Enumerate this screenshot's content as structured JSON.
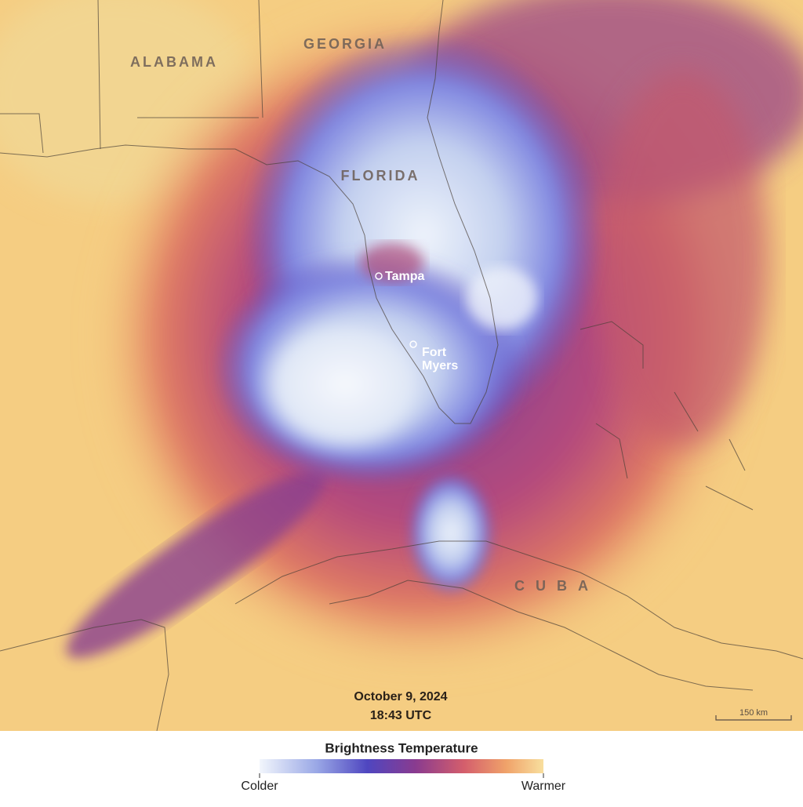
{
  "map": {
    "regions": [
      "ALABAMA",
      "GEORGIA",
      "FLORIDA",
      "CUBA"
    ],
    "cities": [
      {
        "name": [
          "Tampa"
        ]
      },
      {
        "name": [
          "Fort",
          "Myers"
        ]
      }
    ],
    "date": "October 9, 2024",
    "time": "18:43 UTC",
    "scale_bar": "150 km"
  },
  "legend": {
    "title": "Brightness Temperature",
    "low": "Colder",
    "high": "Warmer"
  }
}
